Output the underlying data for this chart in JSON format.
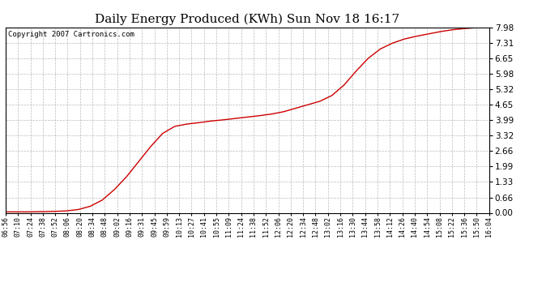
{
  "title": "Daily Energy Produced (KWh) Sun Nov 18 16:17",
  "copyright_text": "Copyright 2007 Cartronics.com",
  "line_color": "#cc0000",
  "background_color": "#ffffff",
  "grid_color": "#bbbbbb",
  "yticks": [
    0.0,
    0.66,
    1.33,
    1.99,
    2.66,
    3.32,
    3.99,
    4.65,
    5.32,
    5.98,
    6.65,
    7.31,
    7.98
  ],
  "ylim": [
    0.0,
    7.98
  ],
  "xtick_labels": [
    "06:56",
    "07:10",
    "07:24",
    "07:38",
    "07:52",
    "08:06",
    "08:20",
    "08:34",
    "08:48",
    "09:02",
    "09:16",
    "09:31",
    "09:45",
    "09:59",
    "10:13",
    "10:27",
    "10:41",
    "10:55",
    "11:09",
    "11:24",
    "11:38",
    "11:52",
    "12:06",
    "12:20",
    "12:34",
    "12:48",
    "13:02",
    "13:16",
    "13:30",
    "13:44",
    "13:58",
    "14:12",
    "14:26",
    "14:40",
    "14:54",
    "15:08",
    "15:22",
    "15:36",
    "15:50",
    "16:04"
  ],
  "y_data": [
    0.04,
    0.04,
    0.04,
    0.05,
    0.06,
    0.08,
    0.14,
    0.28,
    0.55,
    1.0,
    1.55,
    2.2,
    2.85,
    3.42,
    3.72,
    3.82,
    3.88,
    3.95,
    4.0,
    4.06,
    4.12,
    4.18,
    4.25,
    4.35,
    4.5,
    4.65,
    4.8,
    5.05,
    5.5,
    6.1,
    6.65,
    7.05,
    7.3,
    7.48,
    7.6,
    7.7,
    7.8,
    7.88,
    7.93,
    7.97,
    7.98
  ],
  "title_fontsize": 11,
  "copyright_fontsize": 6.5,
  "ytick_fontsize": 7.5,
  "xtick_fontsize": 6.0
}
